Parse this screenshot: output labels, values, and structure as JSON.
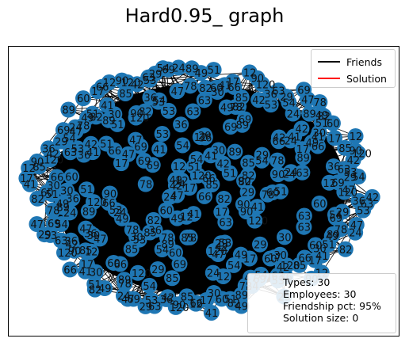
{
  "figure": {
    "title": "Hard0.95_ graph"
  },
  "legend": {
    "items": [
      {
        "label": "Friends",
        "color": "#000000"
      },
      {
        "label": "Solution",
        "color": "#ff0000"
      }
    ]
  },
  "stats": {
    "types": "Types: 30",
    "employees": "Employees: 30",
    "friendship_pct": "Friendship pct: 95%",
    "solution_size": "Solution size: 0"
  },
  "graph": {
    "node_color": "#1f77b4",
    "edge_color": "#000000",
    "visible_node_labels": [
      "120",
      "42",
      "36",
      "63",
      "53",
      "29",
      "54",
      "69",
      "47",
      "24",
      "78",
      "89",
      "49",
      "82",
      "51",
      "60",
      "30",
      "41",
      "17",
      "66",
      "12",
      "85",
      "90"
    ]
  }
}
